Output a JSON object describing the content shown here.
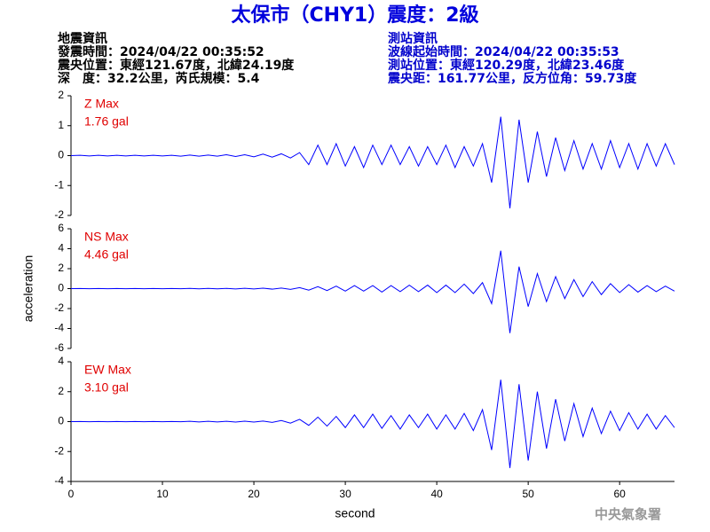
{
  "header": {
    "title": "太保市（CHY1）震度：2級",
    "left": [
      "地震資訊",
      "發震時間：2024/04/22 00:35:52",
      "震央位置：東經121.67度，北緯24.19度",
      "深　度：32.2公里，芮氏規模：5.4"
    ],
    "right": [
      "測站資訊",
      "波線起始時間：2024/04/22 00:35:53",
      "測站位置：東經120.29度，北緯23.46度",
      "震央距：161.77公里，反方位角：59.73度"
    ]
  },
  "footer": "中央氣象署",
  "chart_data": [
    {
      "type": "line",
      "label": "Z Max",
      "max_label": "1.76 gal",
      "color": "#0000ff",
      "label_color": "#e00000",
      "xlim": [
        0,
        66
      ],
      "ylim": [
        -2,
        2
      ],
      "yticks": [
        -2,
        -1,
        0,
        1,
        2
      ],
      "x": [
        0,
        1,
        2,
        3,
        4,
        5,
        6,
        7,
        8,
        9,
        10,
        11,
        12,
        13,
        14,
        15,
        16,
        17,
        18,
        19,
        20,
        21,
        22,
        23,
        24,
        25,
        26,
        27,
        28,
        29,
        30,
        31,
        32,
        33,
        34,
        35,
        36,
        37,
        38,
        39,
        40,
        41,
        42,
        43,
        44,
        45,
        46,
        47,
        48,
        49,
        50,
        51,
        52,
        53,
        54,
        55,
        56,
        57,
        58,
        59,
        60,
        61,
        62,
        63,
        64,
        65,
        66
      ],
      "values": [
        0,
        0.01,
        -0.01,
        0.01,
        -0.01,
        0.01,
        -0.01,
        0.01,
        -0.01,
        0.01,
        -0.01,
        0.01,
        -0.02,
        0.02,
        -0.02,
        0.02,
        -0.02,
        0.03,
        -0.03,
        0.03,
        -0.04,
        0.05,
        -0.05,
        0.06,
        -0.08,
        0.1,
        -0.3,
        0.35,
        -0.3,
        0.4,
        -0.35,
        0.3,
        -0.4,
        0.35,
        -0.3,
        0.35,
        -0.3,
        0.3,
        -0.35,
        0.3,
        -0.3,
        0.35,
        -0.4,
        0.3,
        -0.35,
        0.4,
        -0.9,
        1.3,
        -1.76,
        1.2,
        -0.9,
        0.8,
        -0.7,
        0.6,
        -0.5,
        0.5,
        -0.45,
        0.4,
        -0.45,
        0.5,
        -0.4,
        0.4,
        -0.45,
        0.4,
        -0.35,
        0.4,
        -0.3
      ]
    },
    {
      "type": "line",
      "label": "NS Max",
      "max_label": "4.46 gal",
      "color": "#0000ff",
      "label_color": "#e00000",
      "xlim": [
        0,
        66
      ],
      "ylim": [
        -6,
        6
      ],
      "yticks": [
        -6,
        -4,
        -2,
        0,
        2,
        4,
        6
      ],
      "ylabel": "acceleration",
      "x": [
        0,
        1,
        2,
        3,
        4,
        5,
        6,
        7,
        8,
        9,
        10,
        11,
        12,
        13,
        14,
        15,
        16,
        17,
        18,
        19,
        20,
        21,
        22,
        23,
        24,
        25,
        26,
        27,
        28,
        29,
        30,
        31,
        32,
        33,
        34,
        35,
        36,
        37,
        38,
        39,
        40,
        41,
        42,
        43,
        44,
        45,
        46,
        47,
        48,
        49,
        50,
        51,
        52,
        53,
        54,
        55,
        56,
        57,
        58,
        59,
        60,
        61,
        62,
        63,
        64,
        65,
        66
      ],
      "values": [
        0,
        0.01,
        -0.01,
        0.01,
        -0.01,
        0.01,
        -0.01,
        0.01,
        -0.01,
        0.01,
        -0.01,
        0.01,
        -0.01,
        0.02,
        -0.02,
        0.02,
        -0.02,
        0.02,
        -0.03,
        0.03,
        -0.03,
        0.04,
        -0.05,
        0.06,
        -0.08,
        0.1,
        -0.15,
        0.2,
        -0.2,
        0.25,
        -0.25,
        0.3,
        -0.25,
        0.3,
        -0.35,
        0.3,
        -0.3,
        0.35,
        -0.3,
        0.35,
        -0.4,
        0.35,
        -0.4,
        0.45,
        -0.5,
        0.6,
        -1.5,
        3.8,
        -4.46,
        2.2,
        -1.8,
        1.5,
        -1.3,
        1.2,
        -1.0,
        0.9,
        -0.8,
        0.7,
        -0.6,
        0.5,
        -0.4,
        0.4,
        -0.35,
        0.3,
        -0.3,
        0.25,
        -0.25
      ]
    },
    {
      "type": "line",
      "label": "EW Max",
      "max_label": "3.10 gal",
      "color": "#0000ff",
      "label_color": "#e00000",
      "xlim": [
        0,
        66
      ],
      "ylim": [
        -4,
        4
      ],
      "yticks": [
        -4,
        -2,
        0,
        2,
        4
      ],
      "xticks": [
        0,
        10,
        20,
        30,
        40,
        50,
        60
      ],
      "xlabel": "second",
      "x": [
        0,
        1,
        2,
        3,
        4,
        5,
        6,
        7,
        8,
        9,
        10,
        11,
        12,
        13,
        14,
        15,
        16,
        17,
        18,
        19,
        20,
        21,
        22,
        23,
        24,
        25,
        26,
        27,
        28,
        29,
        30,
        31,
        32,
        33,
        34,
        35,
        36,
        37,
        38,
        39,
        40,
        41,
        42,
        43,
        44,
        45,
        46,
        47,
        48,
        49,
        50,
        51,
        52,
        53,
        54,
        55,
        56,
        57,
        58,
        59,
        60,
        61,
        62,
        63,
        64,
        65,
        66
      ],
      "values": [
        0,
        0.01,
        -0.01,
        0.01,
        -0.01,
        0.01,
        -0.01,
        0.01,
        -0.01,
        0.01,
        -0.01,
        0.01,
        -0.01,
        0.02,
        -0.02,
        0.02,
        -0.02,
        0.02,
        -0.03,
        0.03,
        -0.03,
        0.04,
        -0.05,
        0.07,
        -0.1,
        0.15,
        -0.25,
        0.3,
        -0.3,
        0.35,
        -0.4,
        0.45,
        -0.4,
        0.5,
        -0.45,
        0.4,
        -0.5,
        0.45,
        -0.4,
        0.5,
        -0.5,
        0.45,
        -0.5,
        0.55,
        -0.6,
        0.8,
        -1.9,
        2.8,
        -3.1,
        2.5,
        -2.6,
        2.0,
        -1.8,
        1.5,
        -1.3,
        1.2,
        -1.0,
        0.9,
        -0.8,
        0.7,
        -0.6,
        0.6,
        -0.5,
        0.5,
        -0.5,
        0.4,
        -0.4
      ]
    }
  ]
}
